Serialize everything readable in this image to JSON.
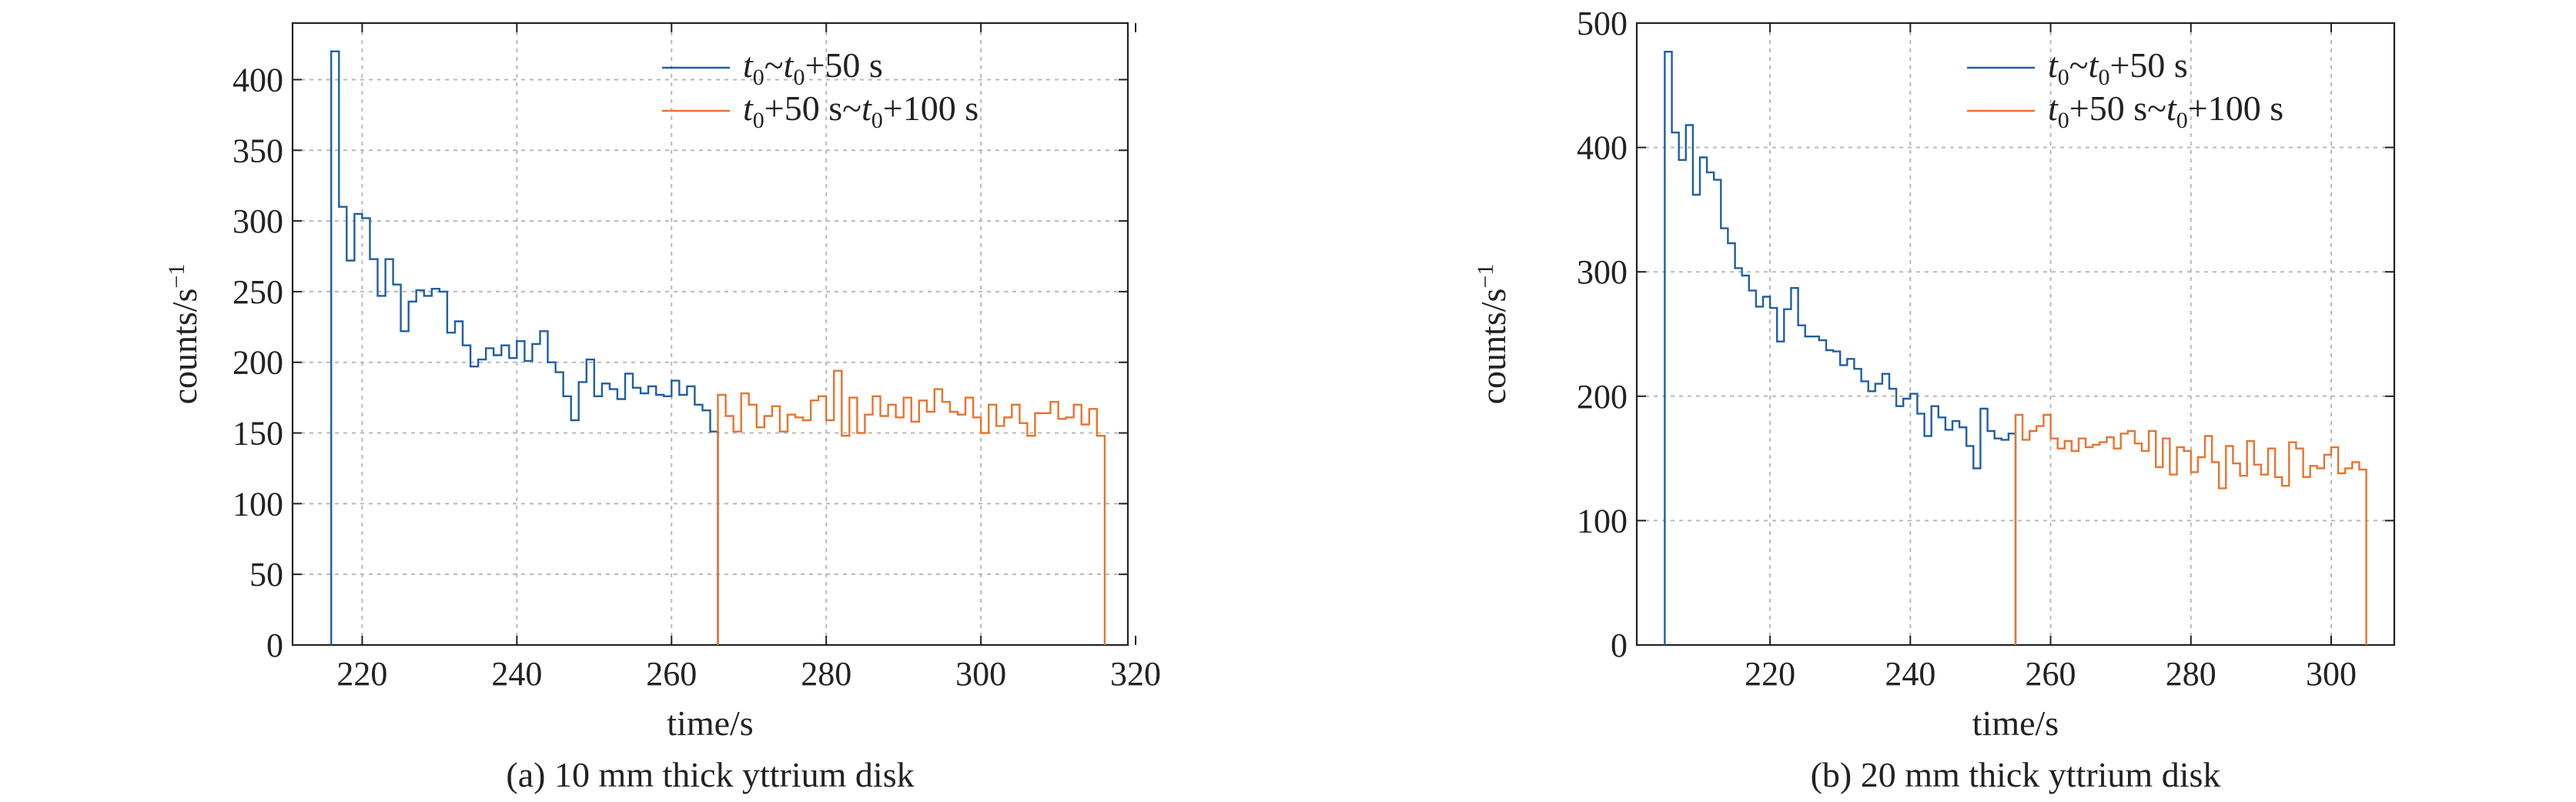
{
  "colors": {
    "series_a": "#1f5fa0",
    "series_b": "#e8732e",
    "grid": "#b8b8b8",
    "axis": "#222222"
  },
  "chart_data": [
    {
      "type": "step",
      "caption": "(a) 10 mm thick yttrium disk",
      "xlabel": "time/s",
      "ylabel_base": "counts/s",
      "ylabel_sup": "−1",
      "xlim": [
        211,
        319
      ],
      "ylim": [
        0,
        440
      ],
      "xticks": [
        220,
        240,
        260,
        280,
        300,
        320
      ],
      "yticks": [
        0,
        50,
        100,
        150,
        200,
        250,
        300,
        350,
        400
      ],
      "grid": true,
      "legend_position": "top-right",
      "legend": [
        {
          "s1": "t",
          "sub1": "0",
          "mid": "~",
          "s2": "t",
          "sub2": "0",
          "tail": "+50 s"
        },
        {
          "s1": "t",
          "sub1": "0",
          "mid": "+50 s~",
          "s2": "t",
          "sub2": "0",
          "tail": "+100 s"
        }
      ],
      "series": [
        {
          "x_start": 216,
          "bin": 1,
          "values": [
            420,
            310,
            272,
            305,
            302,
            273,
            247,
            273,
            255,
            222,
            243,
            251,
            247,
            252,
            250,
            221,
            229,
            212,
            197,
            202,
            210,
            205,
            212,
            203,
            215,
            201,
            213,
            222,
            200,
            193,
            176,
            159,
            186,
            202,
            176,
            185,
            181,
            174,
            192,
            182,
            178,
            183,
            177,
            176,
            187,
            177,
            183,
            170,
            166,
            151
          ]
        },
        {
          "x_start": 266,
          "bin": 1,
          "values": [
            177,
            162,
            151,
            178,
            170,
            154,
            162,
            169,
            151,
            163,
            161,
            159,
            173,
            176,
            159,
            194,
            148,
            175,
            150,
            163,
            176,
            162,
            170,
            161,
            175,
            158,
            173,
            165,
            181,
            172,
            165,
            163,
            175,
            161,
            150,
            170,
            155,
            161,
            170,
            157,
            148,
            164,
            164,
            172,
            160,
            161,
            170,
            156,
            167,
            148
          ]
        }
      ]
    },
    {
      "type": "step",
      "caption": "(b) 20 mm thick yttrium disk",
      "xlabel": "time/s",
      "ylabel_base": "counts/s",
      "ylabel_sup": "−1",
      "xlim": [
        201,
        309
      ],
      "ylim": [
        0,
        500
      ],
      "xticks": [
        220,
        240,
        260,
        280,
        300
      ],
      "yticks": [
        0,
        100,
        200,
        300,
        400,
        500
      ],
      "grid": true,
      "legend_position": "top-right",
      "legend": [
        {
          "s1": "t",
          "sub1": "0",
          "mid": "~",
          "s2": "t",
          "sub2": "0",
          "tail": "+50 s"
        },
        {
          "s1": "t",
          "sub1": "0",
          "mid": "+50 s~",
          "s2": "t",
          "sub2": "0",
          "tail": "+100 s"
        }
      ],
      "series": [
        {
          "x_start": 205,
          "bin": 1,
          "values": [
            477,
            412,
            390,
            418,
            362,
            392,
            380,
            374,
            335,
            323,
            303,
            297,
            285,
            272,
            280,
            271,
            244,
            270,
            287,
            257,
            248,
            248,
            245,
            237,
            236,
            225,
            230,
            222,
            212,
            204,
            210,
            218,
            206,
            192,
            198,
            202,
            186,
            168,
            192,
            183,
            173,
            180,
            175,
            160,
            142,
            190,
            172,
            166,
            165,
            170
          ]
        },
        {
          "x_start": 255,
          "bin": 1,
          "values": [
            185,
            165,
            172,
            176,
            185,
            166,
            158,
            164,
            156,
            166,
            159,
            161,
            163,
            167,
            158,
            170,
            172,
            162,
            156,
            172,
            143,
            166,
            137,
            159,
            156,
            139,
            151,
            168,
            147,
            126,
            160,
            146,
            136,
            164,
            145,
            137,
            158,
            135,
            128,
            163,
            158,
            135,
            144,
            142,
            153,
            159,
            138,
            142,
            147,
            141
          ]
        }
      ]
    }
  ]
}
